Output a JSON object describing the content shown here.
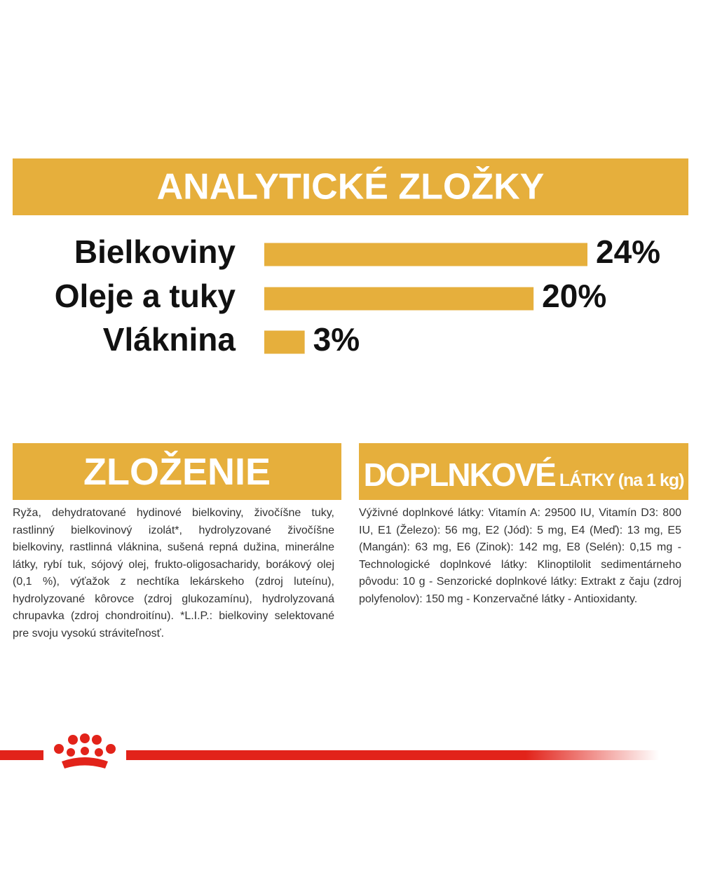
{
  "chart_data": {
    "type": "bar",
    "orientation": "horizontal",
    "title": "ANALYTICKÉ ZLOŽKY",
    "categories": [
      "Bielkoviny",
      "Oleje a tuky",
      "Vláknina"
    ],
    "values": [
      24,
      20,
      3
    ],
    "value_labels": [
      "24%",
      "20%",
      "3%"
    ],
    "color": "#e6af3c",
    "xlim": [
      0,
      24
    ]
  },
  "sections": [
    {
      "title": "ZLOŽENIE",
      "text": "Ryža, dehydratované hydinové bielkoviny, živočíšne tuky, rastlinný bielkovinový izolát*, hydrolyzované živočíšne bielkoviny, rastlinná vláknina, sušená repná dužina, minerálne látky, rybí tuk, sójový olej, frukto-oligosacharidy, borákový olej (0,1 %), výťažok z nechtíka lekárskeho (zdroj luteínu), hydrolyzované kôrovce (zdroj glukozamínu), hydrolyzovaná chrupavka (zdroj chondroitínu). *L.I.P.: bielkoviny selektované pre svoju vysokú stráviteľnosť."
    },
    {
      "title": "DOPLNKOVÉ",
      "subtitle": "LÁTKY (na 1 kg)",
      "text": "Výživné doplnkové látky: Vitamín A: 29500 IU, Vitamín D3: 800 IU, E1 (Železo): 56 mg, E2 (Jód): 5 mg, E4 (Meď): 13 mg, E5 (Mangán): 63 mg, E6 (Zinok): 142 mg, E8 (Selén): 0,15 mg - Technologické doplnkové látky: Klinoptilolit sedimentárneho pôvodu: 10 g - Senzorické doplnkové látky: Extrakt z čaju (zdroj polyfenolov): 150 mg - Konzervačné látky - Antioxidanty."
    }
  ]
}
